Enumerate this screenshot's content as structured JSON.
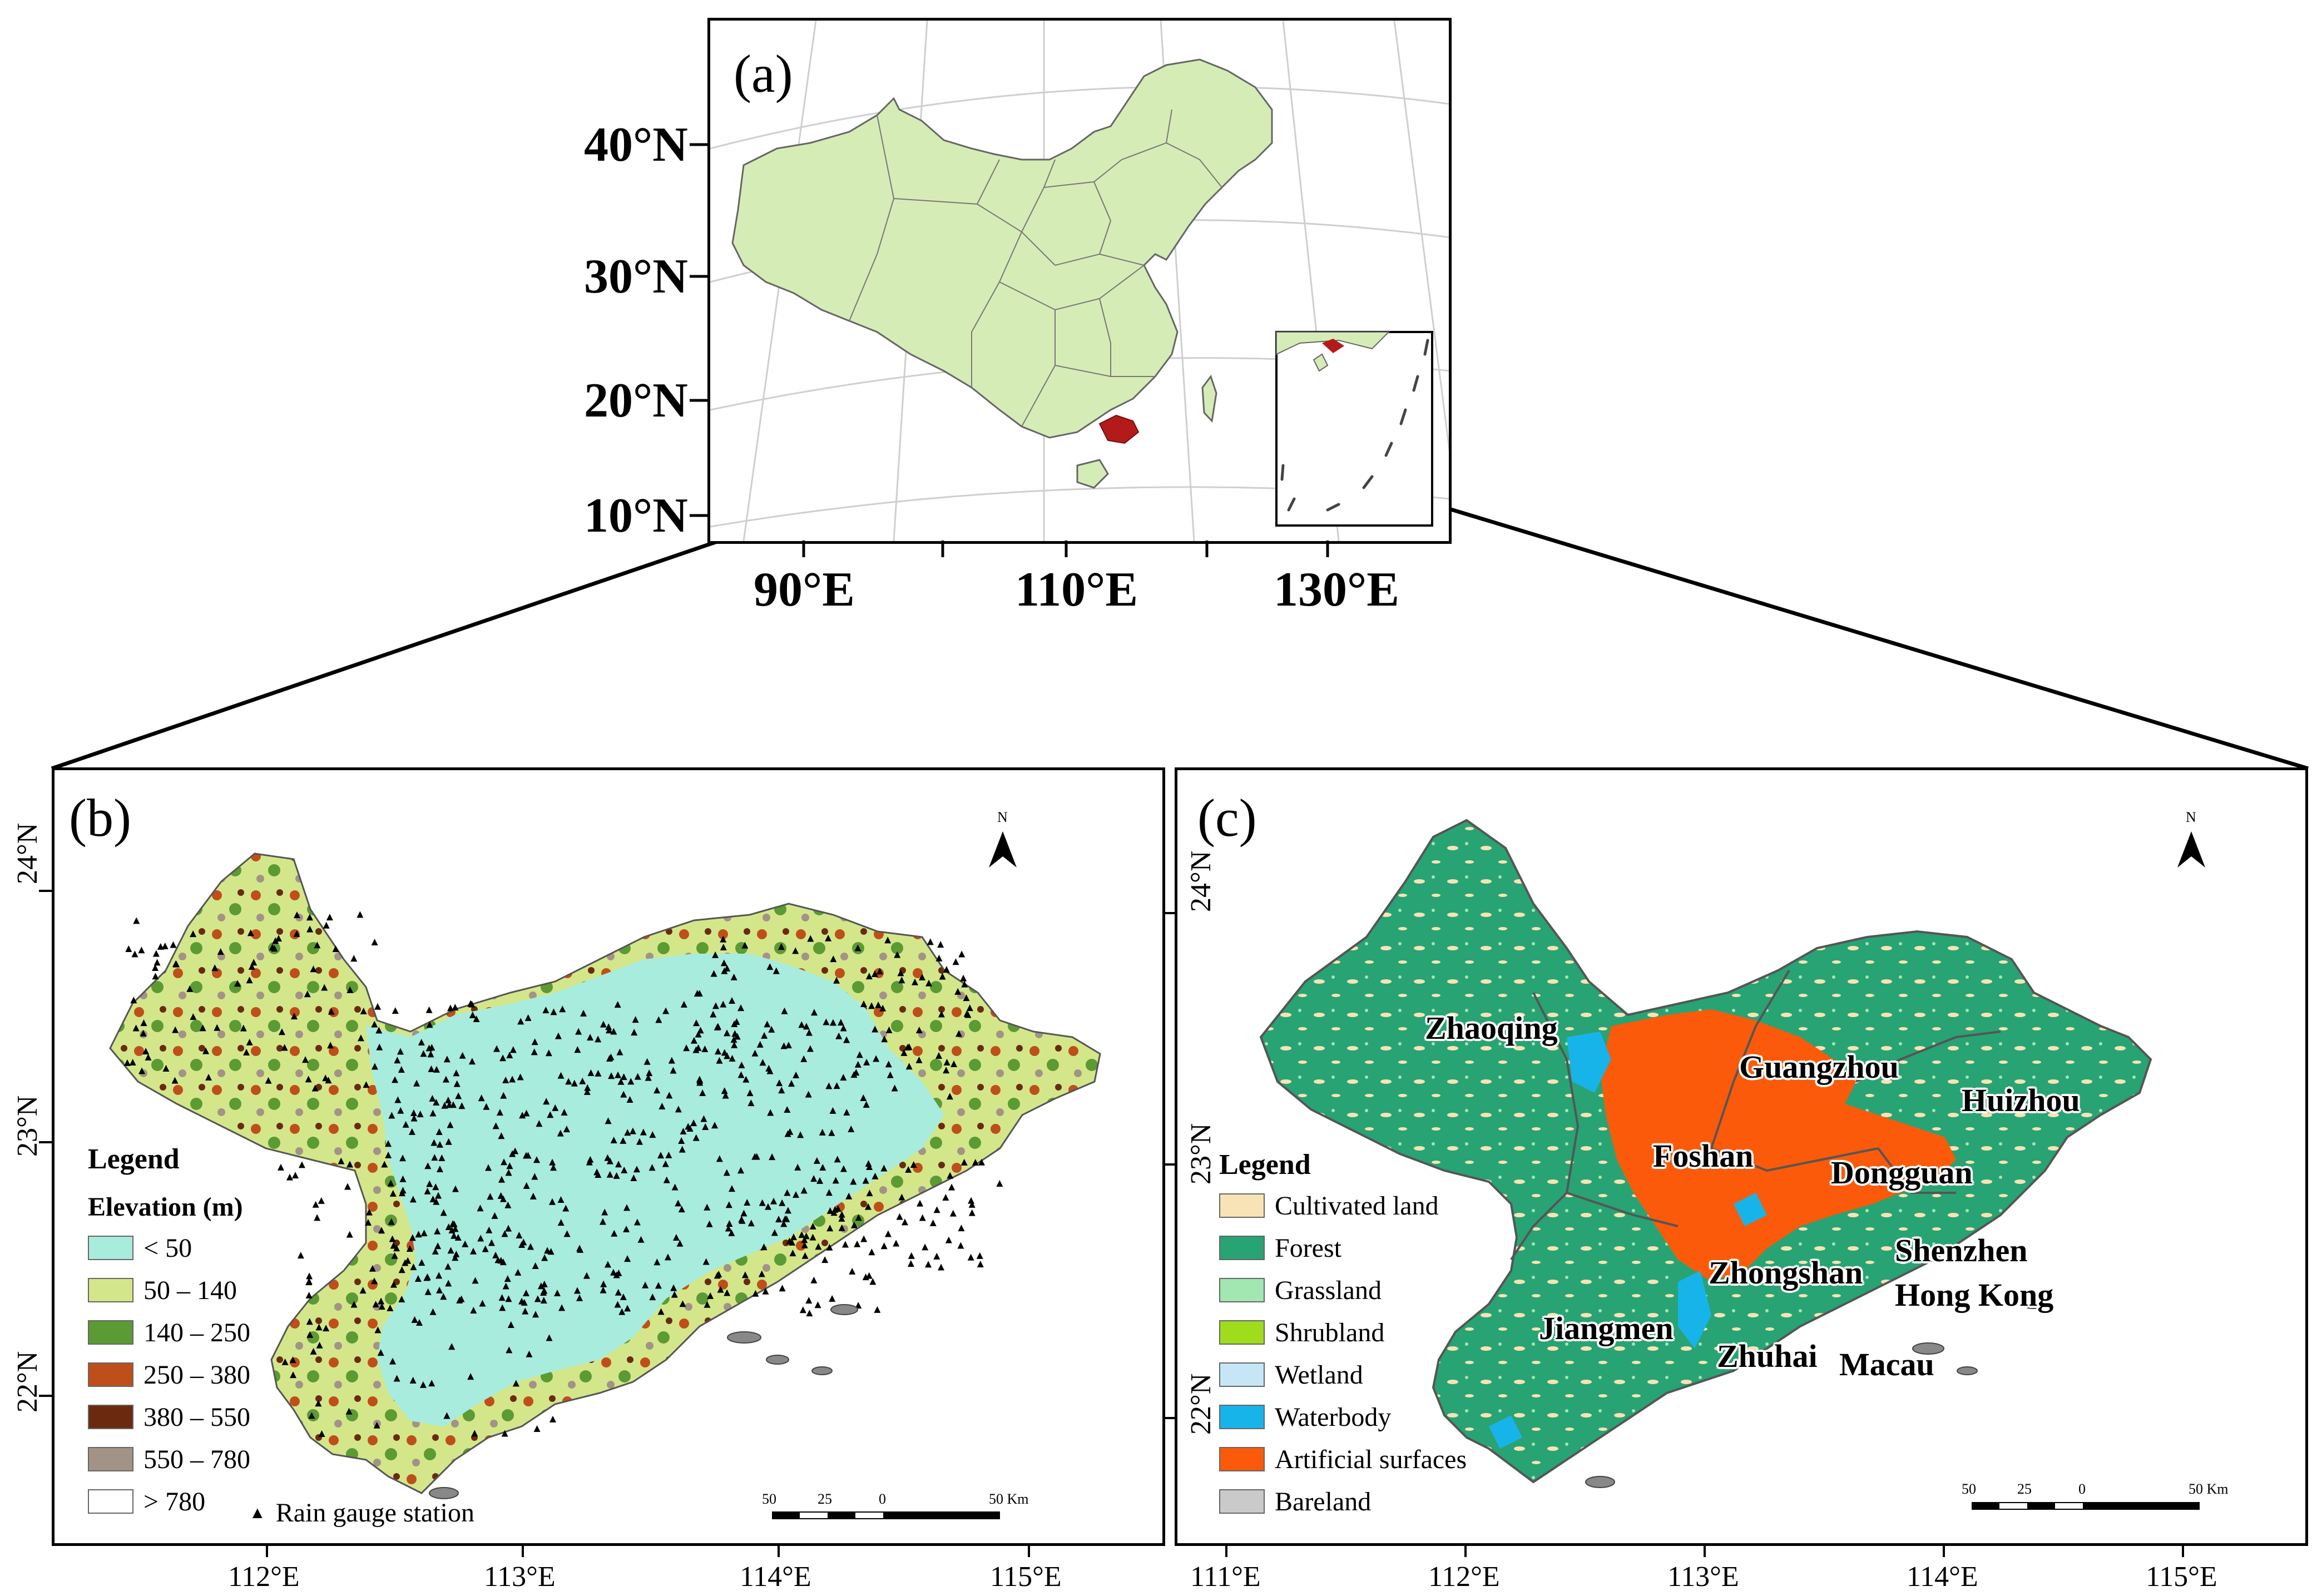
{
  "panel_a": {
    "label": "(a)",
    "lat_labels": [
      "40°N",
      "30°N",
      "20°N",
      "10°N"
    ],
    "lon_labels": [
      "90°E",
      "110°E",
      "130°E"
    ],
    "colors": {
      "land": "#d6ecb6",
      "study_area": "#b31b1b",
      "graticule": "#c8c8c8"
    }
  },
  "panel_b": {
    "label": "(b)",
    "legend_title": "Legend",
    "legend_subtitle": "Elevation (m)",
    "elevation_classes": [
      {
        "label": "< 50",
        "color": "#a8ecde"
      },
      {
        "label": "50 – 140",
        "color": "#d3e78a"
      },
      {
        "label": "140 – 250",
        "color": "#5c9a34"
      },
      {
        "label": "250 – 380",
        "color": "#bf4f1a"
      },
      {
        "label": "380 – 550",
        "color": "#6b2a10"
      },
      {
        "label": "550 – 780",
        "color": "#a39387"
      },
      {
        "label": "> 780",
        "color": "#ffffff"
      }
    ],
    "station_label": "Rain gauge station",
    "lat_labels": [
      "24°N",
      "23°N",
      "22°N"
    ],
    "lon_labels": [
      "112°E",
      "113°E",
      "114°E",
      "115°E"
    ],
    "north_label": "N",
    "scale_labels": [
      "50",
      "25",
      "0",
      "50 Km"
    ]
  },
  "panel_c": {
    "label": "(c)",
    "legend_title": "Legend",
    "landuse_classes": [
      {
        "label": "Cultivated land",
        "color": "#f7e3b5"
      },
      {
        "label": "Forest",
        "color": "#28a374"
      },
      {
        "label": "Grassland",
        "color": "#a2e6b2"
      },
      {
        "label": "Shrubland",
        "color": "#9fdc1c"
      },
      {
        "label": "Wetland",
        "color": "#c6e6f6"
      },
      {
        "label": "Waterbody",
        "color": "#17b4ea"
      },
      {
        "label": "Artificial surfaces",
        "color": "#fb5a0a"
      },
      {
        "label": "Bareland",
        "color": "#cacaca"
      }
    ],
    "cities": [
      "Zhaoqing",
      "Guangzhou",
      "Huizhou",
      "Foshan",
      "Dongguan",
      "Zhongshan",
      "Shenzhen",
      "Hong Kong",
      "Jiangmen",
      "Zhuhai",
      "Macau"
    ],
    "lat_labels": [
      "24°N",
      "23°N",
      "22°N"
    ],
    "lon_labels": [
      "111°E",
      "112°E",
      "113°E",
      "114°E",
      "115°E"
    ],
    "north_label": "N",
    "scale_labels": [
      "50",
      "25",
      "0",
      "50 Km"
    ]
  }
}
